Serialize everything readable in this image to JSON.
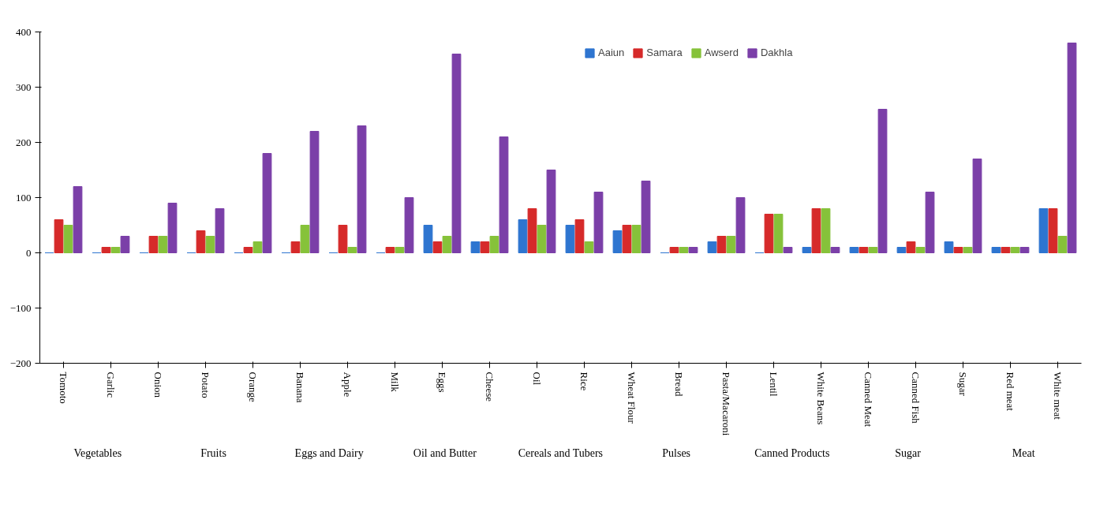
{
  "chart_data": {
    "type": "bar",
    "categories": [
      "Tomoto",
      "Garlic",
      "Onion",
      "Potato",
      "Orange",
      "Banana",
      "Apple",
      "Milk",
      "Eggs",
      "Cheese",
      "Oil",
      "Rice",
      "Wheat Flour",
      "Bread",
      "Pasta/Macaroni",
      "Lentil",
      "White Beans",
      "Canned Meat",
      "Canned Fish",
      "Sugar",
      "Red meat",
      "White meat"
    ],
    "series": [
      {
        "name": "Aaiun",
        "color": "#2e75d0",
        "values": [
          0,
          0,
          0,
          0,
          0,
          0,
          0,
          0,
          50,
          20,
          60,
          50,
          40,
          0,
          20,
          0,
          10,
          10,
          10,
          20,
          10,
          80
        ]
      },
      {
        "name": "Samara",
        "color": "#d62a2a",
        "values": [
          60,
          10,
          30,
          40,
          10,
          20,
          50,
          10,
          20,
          20,
          80,
          60,
          50,
          10,
          30,
          70,
          80,
          10,
          20,
          10,
          10,
          80
        ]
      },
      {
        "name": "Awserd",
        "color": "#86c23a",
        "values": [
          50,
          10,
          30,
          30,
          20,
          50,
          10,
          10,
          30,
          30,
          50,
          20,
          50,
          10,
          30,
          70,
          80,
          10,
          10,
          10,
          10,
          30
        ]
      },
      {
        "name": "Dakhla",
        "color": "#7b3fa8",
        "values": [
          120,
          30,
          90,
          80,
          180,
          220,
          230,
          100,
          360,
          210,
          150,
          110,
          130,
          10,
          100,
          10,
          10,
          260,
          110,
          170,
          10,
          380
        ]
      }
    ],
    "ylim": [
      -200,
      400
    ],
    "yticks": [
      -200,
      -100,
      0,
      100,
      200,
      300,
      400
    ],
    "legend": "top",
    "annotations": [
      "Vegetables",
      "Fruits",
      "Eggs and Dairy",
      "Oil and Butter",
      "Cereals and Tubers",
      "Pulses",
      "Canned Products",
      "Sugar",
      "Meat"
    ]
  }
}
